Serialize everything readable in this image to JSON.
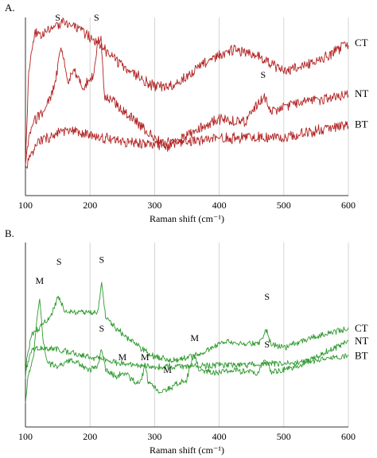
{
  "figure": {
    "panels": [
      {
        "label": "A.",
        "line_color": "#b22222",
        "noise_amplitude": 0.06
      },
      {
        "label": "B.",
        "line_color": "#2e9a2e",
        "noise_amplitude": 0.035
      }
    ]
  },
  "chart_data": [
    {
      "type": "line",
      "title": "",
      "xlabel": "Raman shift (cm⁻¹)",
      "ylabel": "",
      "xlim": [
        100,
        600
      ],
      "x_ticks": [
        100,
        200,
        300,
        400,
        500,
        600
      ],
      "grid": "vertical",
      "legend": "none",
      "series": [
        {
          "name": "CT",
          "x": [
            100,
            105,
            115,
            130,
            160,
            200,
            250,
            300,
            330,
            380,
            420,
            460,
            500,
            550,
            600
          ],
          "y": [
            0.45,
            1.95,
            2.55,
            2.55,
            2.75,
            2.5,
            2.05,
            1.7,
            1.75,
            2.1,
            2.3,
            2.2,
            1.95,
            2.1,
            2.4
          ]
        },
        {
          "name": "BT",
          "x": [
            100,
            120,
            160,
            200,
            250,
            300,
            350,
            400,
            450,
            500,
            550,
            600
          ],
          "y": [
            0.45,
            0.85,
            1.02,
            0.95,
            0.85,
            0.8,
            0.85,
            0.9,
            0.92,
            0.92,
            1.02,
            1.12
          ]
        },
        {
          "name": "NT",
          "x": [
            100,
            105,
            115,
            130,
            145,
            155,
            165,
            175,
            190,
            205,
            212,
            217,
            222,
            235,
            260,
            290,
            320,
            340,
            370,
            400,
            440,
            460,
            470,
            480,
            500,
            540,
            580,
            600
          ],
          "y": [
            0.45,
            0.9,
            1.2,
            1.35,
            1.7,
            2.35,
            1.8,
            1.95,
            1.7,
            1.9,
            2.4,
            2.5,
            1.55,
            1.5,
            1.25,
            1.0,
            0.75,
            0.9,
            1.05,
            1.2,
            1.15,
            1.45,
            1.55,
            1.3,
            1.4,
            1.5,
            1.55,
            1.6
          ]
        }
      ],
      "annotations": [
        {
          "text": "S",
          "x": 150,
          "y": 2.75
        },
        {
          "text": "S",
          "x": 210,
          "y": 2.75
        },
        {
          "text": "S",
          "x": 468,
          "y": 1.85
        }
      ]
    },
    {
      "type": "line",
      "title": "",
      "xlabel": "Raman shift (cm⁻¹)",
      "ylabel": "",
      "xlim": [
        100,
        600
      ],
      "x_ticks": [
        100,
        200,
        300,
        400,
        500,
        600
      ],
      "grid": "vertical",
      "legend": "none",
      "series": [
        {
          "name": "CT",
          "x": [
            100,
            103,
            110,
            125,
            140,
            150,
            160,
            175,
            200,
            212,
            218,
            224,
            240,
            270,
            300,
            330,
            370,
            410,
            450,
            465,
            472,
            480,
            500,
            540,
            580,
            600
          ],
          "y": [
            0.8,
            1.15,
            1.45,
            1.6,
            1.75,
            2.05,
            1.85,
            1.8,
            1.8,
            1.8,
            2.25,
            1.75,
            1.55,
            1.3,
            1.1,
            1.05,
            1.15,
            1.35,
            1.3,
            1.35,
            1.55,
            1.3,
            1.25,
            1.4,
            1.5,
            1.55
          ]
        },
        {
          "name": "BT",
          "x": [
            100,
            110,
            125,
            150,
            200,
            250,
            300,
            350,
            400,
            450,
            500,
            550,
            600
          ],
          "y": [
            0.9,
            1.2,
            1.25,
            1.22,
            1.1,
            1.0,
            0.95,
            0.95,
            0.97,
            0.98,
            1.0,
            1.05,
            1.12
          ]
        },
        {
          "name": "NT",
          "x": [
            100,
            105,
            112,
            118,
            122,
            128,
            135,
            150,
            170,
            200,
            212,
            218,
            224,
            240,
            255,
            270,
            280,
            285,
            290,
            310,
            330,
            350,
            358,
            362,
            368,
            390,
            420,
            460,
            470,
            475,
            480,
            520,
            560,
            600
          ],
          "y": [
            0.4,
            0.85,
            1.05,
            1.75,
            2.0,
            1.3,
            1.0,
            0.95,
            1.05,
            0.9,
            0.95,
            1.25,
            0.9,
            0.8,
            0.85,
            0.7,
            0.75,
            1.0,
            0.7,
            0.55,
            0.65,
            0.75,
            1.05,
            1.15,
            0.9,
            0.85,
            0.9,
            0.85,
            1.05,
            1.05,
            0.85,
            0.95,
            1.15,
            1.35
          ]
        }
      ],
      "annotations": [
        {
          "text": "S",
          "x": 152,
          "y": 2.55
        },
        {
          "text": "S",
          "x": 218,
          "y": 2.58
        },
        {
          "text": "S",
          "x": 474,
          "y": 2.0
        },
        {
          "text": "M",
          "x": 122,
          "y": 2.25
        },
        {
          "text": "S",
          "x": 218,
          "y": 1.5
        },
        {
          "text": "M",
          "x": 250,
          "y": 1.05
        },
        {
          "text": "M",
          "x": 285,
          "y": 1.05
        },
        {
          "text": "M",
          "x": 320,
          "y": 0.85
        },
        {
          "text": "M",
          "x": 362,
          "y": 1.35
        },
        {
          "text": "S",
          "x": 474,
          "y": 1.25
        }
      ]
    }
  ]
}
